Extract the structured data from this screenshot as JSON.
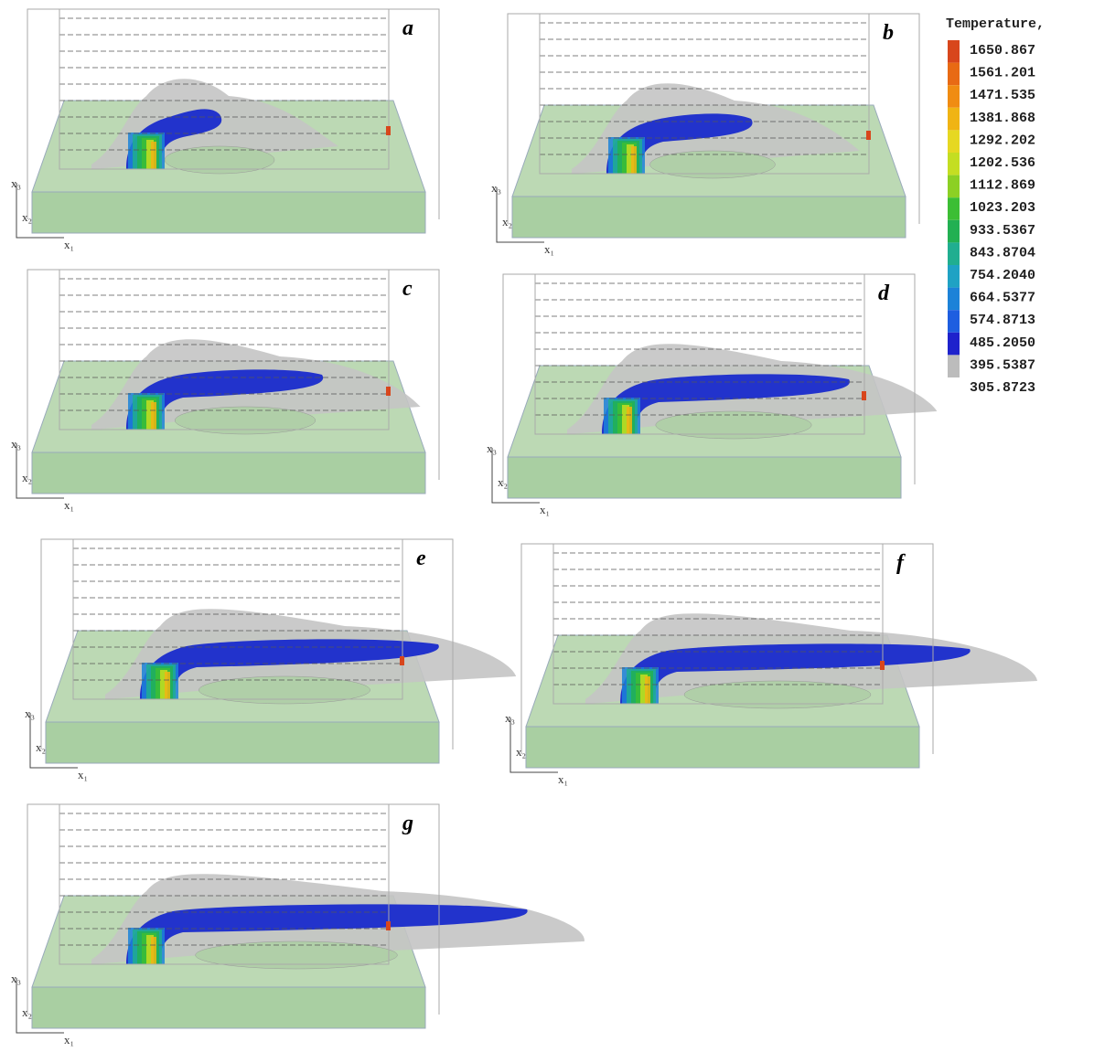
{
  "legend": {
    "title": "Temperature,",
    "labels": [
      "1650.867",
      "1561.201",
      "1471.535",
      "1381.868",
      "1292.202",
      "1202.536",
      "1112.869",
      "1023.203",
      "933.5367",
      "843.8704",
      "754.2040",
      "664.5377",
      "574.8713",
      "485.2050",
      "395.5387",
      "305.8723"
    ],
    "colors": [
      "#d8461c",
      "#e86a14",
      "#f08c12",
      "#f0b414",
      "#e6d822",
      "#c4de22",
      "#8cd024",
      "#3cbe34",
      "#22b052",
      "#20ae90",
      "#1fa2c4",
      "#1c82d8",
      "#1e5ee0",
      "#1e22cc",
      "#bcbcbc"
    ]
  },
  "panels": [
    {
      "label": "a",
      "axes": [
        "x₃",
        "x₂",
        "x₁"
      ]
    },
    {
      "label": "b",
      "axes": [
        "x₃",
        "x₂",
        "x₁"
      ]
    },
    {
      "label": "c",
      "axes": [
        "x₃",
        "x₂",
        "x₁"
      ]
    },
    {
      "label": "d",
      "axes": [
        "x₃",
        "x₂",
        "x₁"
      ]
    },
    {
      "label": "e",
      "axes": [
        "x₃",
        "x₂",
        "x₁"
      ]
    },
    {
      "label": "f",
      "axes": [
        "x₃",
        "x₂",
        "x₁"
      ]
    },
    {
      "label": "g",
      "axes": [
        "x₃",
        "x₂",
        "x₁"
      ]
    }
  ]
}
